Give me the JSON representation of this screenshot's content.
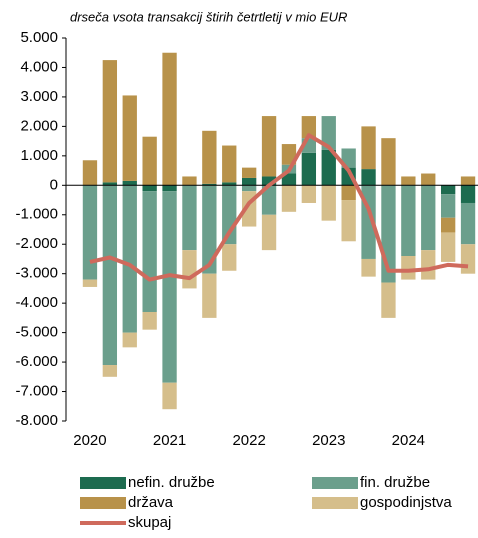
{
  "chart_data": {
    "type": "bar",
    "subtitle": "drseča vsota transakcij štirih četrtletij v mio EUR",
    "categories": [
      "2020",
      null,
      null,
      null,
      "2021",
      null,
      null,
      null,
      "2022",
      null,
      null,
      null,
      "2023",
      null,
      null,
      null,
      "2024",
      null,
      null,
      null
    ],
    "series": [
      {
        "name": "nefin. družbe",
        "color": "#1d6b4f",
        "values": [
          0,
          100,
          150,
          -200,
          -200,
          0,
          50,
          100,
          250,
          300,
          400,
          1100,
          1200,
          600,
          550,
          0,
          0,
          0,
          -300,
          -600
        ]
      },
      {
        "name": "fin. družbe",
        "color": "#6b9f8c",
        "values": [
          -3200,
          -6100,
          -5000,
          -4100,
          -6500,
          -2200,
          -3000,
          -2000,
          -200,
          -1000,
          300,
          500,
          1150,
          650,
          -2500,
          -3300,
          -2400,
          -2200,
          -800,
          -1400
        ]
      },
      {
        "name": "država",
        "color": "#b8924a",
        "values": [
          850,
          4150,
          2900,
          1650,
          4500,
          300,
          1800,
          1250,
          350,
          2050,
          700,
          750,
          0,
          -500,
          1450,
          1600,
          300,
          400,
          -500,
          300
        ]
      },
      {
        "name": "gospodinjstva",
        "color": "#d5be8b",
        "values": [
          -250,
          -400,
          -500,
          -600,
          -900,
          -1300,
          -1500,
          -900,
          -1200,
          -1200,
          -900,
          -600,
          -1200,
          -1400,
          -600,
          -1200,
          -800,
          -1000,
          -1000,
          -1000
        ]
      },
      {
        "name": "skupaj",
        "type": "line",
        "color": "#cf6a5c",
        "values": [
          -2600,
          -2450,
          -2700,
          -3200,
          -3050,
          -3150,
          -2700,
          -1600,
          -600,
          0,
          500,
          1700,
          1300,
          500,
          -800,
          -2900,
          -2900,
          -2850,
          -2700,
          -2750
        ]
      }
    ],
    "ylim": [
      -8000,
      5000
    ],
    "yticks": [
      {
        "value": -8000,
        "label": "-8.000"
      },
      {
        "value": -7000,
        "label": "-7.000"
      },
      {
        "value": -6000,
        "label": "-6.000"
      },
      {
        "value": -5000,
        "label": "-5.000"
      },
      {
        "value": -4000,
        "label": "-4.000"
      },
      {
        "value": -3000,
        "label": "-3.000"
      },
      {
        "value": -2000,
        "label": "-2.000"
      },
      {
        "value": -1000,
        "label": "-1.000"
      },
      0,
      {
        "value": 1000,
        "label": "1.000"
      },
      {
        "value": 2000,
        "label": "2.000"
      },
      {
        "value": 3000,
        "label": "3.000"
      },
      {
        "value": 4000,
        "label": "4.000"
      },
      {
        "value": 5000,
        "label": "5.000"
      }
    ]
  }
}
